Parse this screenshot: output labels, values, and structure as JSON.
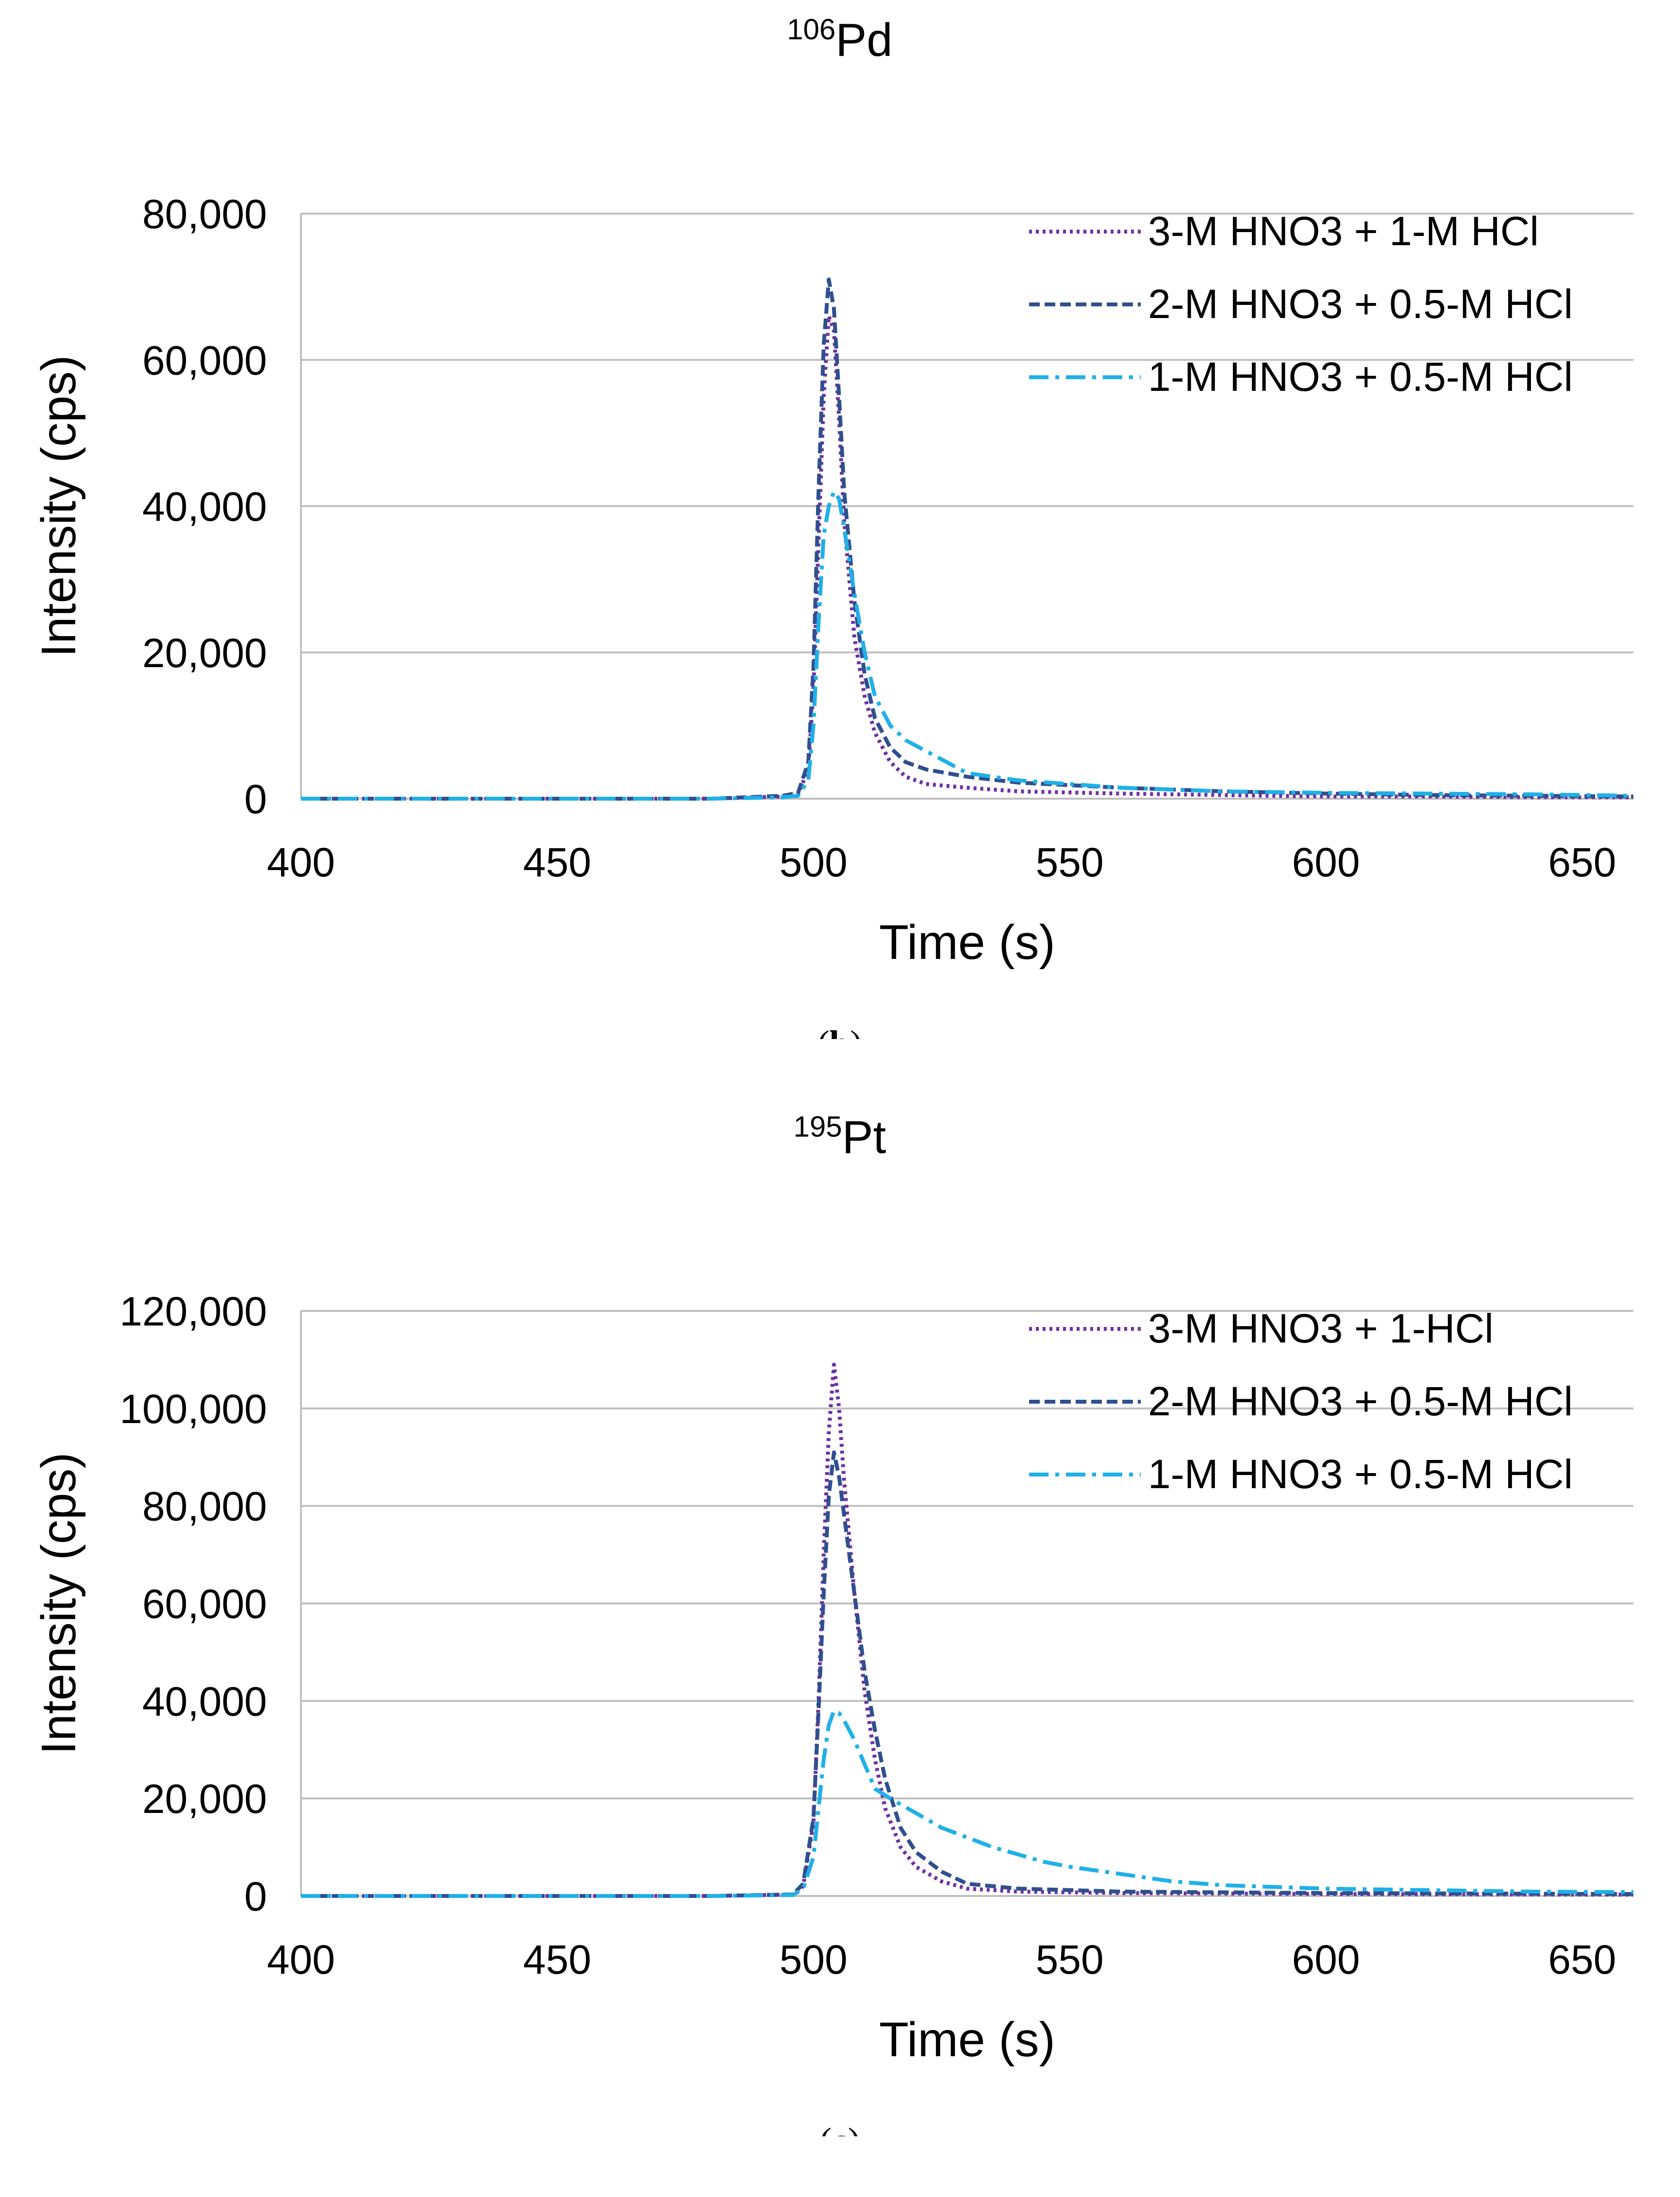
{
  "figures": [
    {
      "caption_letter": "b",
      "chart_data": {
        "type": "line",
        "title_sup": "106",
        "title_main": "Pd",
        "xlabel": "Time (s)",
        "ylabel": "Intensity (cps)",
        "xlim": [
          400,
          660
        ],
        "ylim": [
          0,
          80000
        ],
        "x_ticks": [
          400,
          450,
          500,
          550,
          600,
          650
        ],
        "x_tick_labels": [
          "400",
          "450",
          "500",
          "550",
          "600",
          "650"
        ],
        "y_ticks": [
          0,
          20000,
          40000,
          60000,
          80000
        ],
        "y_tick_labels": [
          "0",
          "20,000",
          "40,000",
          "60,000",
          "80,000"
        ],
        "grid": true,
        "legend_position": "top-right",
        "series": [
          {
            "name": "3-M HNO3 + 1-M HCl",
            "color": "#7030a0",
            "dash": "dotted",
            "x": [
              400,
              440,
              480,
              494,
              497,
              499,
              500,
              501,
              502,
              503,
              504,
              505,
              506,
              508,
              510,
              512,
              515,
              518,
              522,
              530,
              540,
              560,
              580,
              600,
              620,
              640,
              660
            ],
            "y": [
              0,
              0,
              0,
              300,
              600,
              4000,
              15000,
              35000,
              55000,
              66000,
              64000,
              52000,
              38000,
              22000,
              14000,
              9000,
              5000,
              3000,
              2000,
              1500,
              1000,
              700,
              500,
              300,
              300,
              200,
              200
            ]
          },
          {
            "name": "2-M HNO3 + 0.5-M HCl",
            "color": "#2f4f8f",
            "dash": "dashed",
            "x": [
              400,
              440,
              480,
              494,
              497,
              499,
              500,
              501,
              502,
              503,
              504,
              505,
              506,
              508,
              510,
              512,
              515,
              518,
              522,
              530,
              540,
              560,
              580,
              600,
              620,
              640,
              660
            ],
            "y": [
              0,
              0,
              0,
              400,
              800,
              5000,
              18000,
              42000,
              62000,
              71000,
              67000,
              55000,
              42000,
              27000,
              17000,
              11000,
              7000,
              5000,
              4000,
              3000,
              2200,
              1500,
              1000,
              700,
              500,
              400,
              300
            ]
          },
          {
            "name": "1-M HNO3 + 0.5-M HCl",
            "color": "#1fb0e8",
            "dash": "dashdot",
            "x": [
              400,
              440,
              480,
              494,
              497,
              499,
              500,
              501,
              502,
              503,
              504,
              505,
              506,
              508,
              510,
              512,
              515,
              518,
              522,
              526,
              530,
              540,
              560,
              580,
              600,
              620,
              640,
              660
            ],
            "y": [
              0,
              0,
              0,
              200,
              400,
              2500,
              10000,
              24000,
              36000,
              40000,
              42000,
              41000,
              37000,
              28000,
              20000,
              14000,
              10000,
              8000,
              6500,
              5000,
              3500,
              2500,
              1500,
              1000,
              800,
              700,
              600,
              400
            ]
          }
        ]
      }
    },
    {
      "caption_letter": "c",
      "chart_data": {
        "type": "line",
        "title_sup": "195",
        "title_main": "Pt",
        "xlabel": "Time (s)",
        "ylabel": "Intensity (cps)",
        "xlim": [
          400,
          660
        ],
        "ylim": [
          0,
          120000
        ],
        "x_ticks": [
          400,
          450,
          500,
          550,
          600,
          650
        ],
        "x_tick_labels": [
          "400",
          "450",
          "500",
          "550",
          "600",
          "650"
        ],
        "y_ticks": [
          0,
          20000,
          40000,
          60000,
          80000,
          100000,
          120000
        ],
        "y_tick_labels": [
          "0",
          "20,000",
          "40,000",
          "60,000",
          "80,000",
          "100,000",
          "120,000"
        ],
        "grid": true,
        "legend_position": "top-right",
        "series": [
          {
            "name": "3-M HNO3 + 1-HCl",
            "color": "#7030a0",
            "dash": "dotted",
            "x": [
              400,
              440,
              480,
              496,
              498,
              500,
              501,
              502,
              503,
              504,
              505,
              506,
              508,
              510,
              512,
              514,
              517,
              520,
              525,
              530,
              540,
              560,
              600,
              660
            ],
            "y": [
              0,
              0,
              0,
              300,
              2000,
              15000,
              40000,
              70000,
              95000,
              109000,
              100000,
              85000,
              62000,
              42000,
              28000,
              18000,
              10000,
              6000,
              3000,
              1500,
              900,
              600,
              400,
              300
            ]
          },
          {
            "name": "2-M HNO3 + 0.5-M HCl",
            "color": "#2f4f8f",
            "dash": "dashed",
            "x": [
              400,
              440,
              480,
              496,
              498,
              500,
              501,
              502,
              503,
              504,
              505,
              506,
              508,
              510,
              512,
              514,
              517,
              520,
              525,
              530,
              540,
              560,
              600,
              660
            ],
            "y": [
              0,
              0,
              0,
              300,
              2500,
              16000,
              38000,
              62000,
              82000,
              91000,
              86000,
              78000,
              62000,
              46000,
              34000,
              24000,
              14000,
              9000,
              5000,
              2500,
              1500,
              900,
              600,
              400
            ]
          },
          {
            "name": "1-M HNO3 + 0.5-M HCl",
            "color": "#1fb0e8",
            "dash": "dashdot",
            "x": [
              400,
              440,
              480,
              496,
              498,
              500,
              501,
              502,
              503,
              504,
              505,
              506,
              508,
              510,
              512,
              515,
              520,
              525,
              530,
              535,
              540,
              545,
              550,
              560,
              570,
              580,
              600,
              620,
              640,
              660
            ],
            "y": [
              0,
              0,
              0,
              200,
              1500,
              8000,
              18000,
              28000,
              35000,
              38000,
              37500,
              36000,
              32000,
              27000,
              22000,
              20000,
              17000,
              14000,
              12000,
              10000,
              8500,
              7000,
              6000,
              4500,
              3000,
              2200,
              1500,
              1200,
              900,
              800
            ]
          }
        ]
      }
    }
  ]
}
